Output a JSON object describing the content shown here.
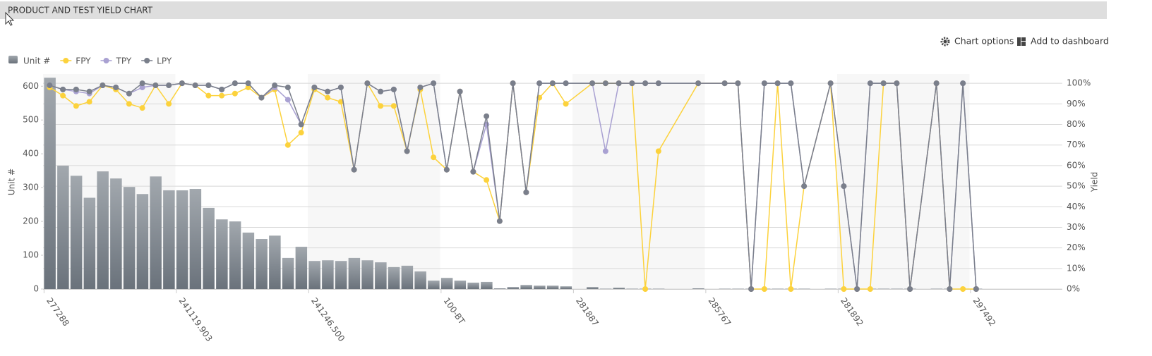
{
  "header": {
    "title": "PRODUCT AND TEST YIELD CHART"
  },
  "toolbar": {
    "chart_options": "Chart options",
    "add_to_dashboard": "Add to dashboard"
  },
  "chart_data": {
    "type": "bar_line",
    "connect_nulls": true,
    "y_label": "Unit #",
    "y2_label": "Yield",
    "categories": [
      "277288",
      null,
      null,
      null,
      null,
      null,
      null,
      null,
      null,
      null,
      "241119.903",
      null,
      null,
      null,
      null,
      null,
      null,
      null,
      null,
      null,
      "241246.500",
      null,
      null,
      null,
      null,
      null,
      null,
      null,
      null,
      null,
      "100-BT",
      null,
      null,
      null,
      null,
      null,
      null,
      null,
      null,
      null,
      "281887",
      null,
      null,
      null,
      null,
      null,
      null,
      null,
      null,
      null,
      "285767",
      null,
      null,
      null,
      null,
      null,
      null,
      null,
      null,
      null,
      "281892",
      null,
      null,
      null,
      null,
      null,
      null,
      null,
      null,
      null,
      "297492"
    ],
    "ylim": [
      0,
      636
    ],
    "yticks": [
      0,
      100,
      200,
      300,
      400,
      500,
      600
    ],
    "y2lim": [
      0,
      104.5
    ],
    "y2ticks": [
      {
        "value": 0,
        "label": "0%"
      },
      {
        "value": 10,
        "label": "10%"
      },
      {
        "value": 20,
        "label": "20%"
      },
      {
        "value": 30,
        "label": "30%"
      },
      {
        "value": 40,
        "label": "40%"
      },
      {
        "value": 50,
        "label": "50%"
      },
      {
        "value": 60,
        "label": "60%"
      },
      {
        "value": 70,
        "label": "70%"
      },
      {
        "value": 80,
        "label": "80%"
      },
      {
        "value": 90,
        "label": "90%"
      },
      {
        "value": 100,
        "label": "100%"
      }
    ],
    "grid": true,
    "legend": "top-left",
    "series": [
      {
        "name": "Unit #",
        "type": "bar",
        "color": "#858d96",
        "values": [
          625,
          365,
          335,
          270,
          348,
          327,
          302,
          281,
          333,
          292,
          292,
          296,
          240,
          206,
          200,
          167,
          148,
          158,
          92,
          125,
          83,
          85,
          83,
          92,
          85,
          79,
          65,
          69,
          52,
          25,
          33,
          25,
          19,
          21,
          2,
          6,
          12,
          10,
          10,
          8,
          null,
          6,
          1,
          4,
          1,
          1,
          1,
          null,
          null,
          2,
          null,
          1,
          1,
          1,
          1,
          1,
          1,
          1,
          null,
          1,
          1,
          1,
          1,
          1,
          1,
          1,
          null,
          1,
          1,
          1,
          1
        ]
      },
      {
        "name": "FPY",
        "type": "line",
        "axis": "y2",
        "color": "#fcd23c",
        "values": [
          98,
          94,
          89,
          91,
          99,
          97,
          90,
          88,
          99,
          90,
          100,
          99,
          94,
          94,
          95,
          98,
          93,
          97,
          70,
          76,
          97,
          93,
          91,
          58,
          100,
          89,
          89,
          67,
          97,
          64,
          58,
          96,
          57,
          53,
          33,
          100,
          47,
          93,
          100,
          90,
          null,
          100,
          100,
          100,
          100,
          0,
          67,
          null,
          null,
          100,
          null,
          100,
          100,
          0,
          0,
          100,
          0,
          50,
          null,
          100,
          0,
          0,
          0,
          100,
          100,
          0,
          null,
          100,
          0,
          0,
          0
        ]
      },
      {
        "name": "TPY",
        "type": "line",
        "axis": "y2",
        "color": "#a9a1d2",
        "values": [
          99,
          97,
          96,
          95,
          99,
          98,
          95,
          98,
          99,
          99,
          100,
          99,
          99,
          97,
          100,
          100,
          93,
          98,
          92,
          80,
          98,
          96,
          98,
          58,
          100,
          96,
          97,
          67,
          98,
          100,
          58,
          96,
          57,
          80,
          33,
          100,
          47,
          100,
          100,
          100,
          null,
          100,
          67,
          100,
          100,
          100,
          100,
          null,
          null,
          100,
          null,
          100,
          100,
          0,
          100,
          100,
          100,
          50,
          null,
          100,
          50,
          0,
          100,
          100,
          100,
          0,
          null,
          100,
          0,
          100,
          0
        ]
      },
      {
        "name": "LPY",
        "type": "line",
        "axis": "y2",
        "color": "#7a7f8b",
        "values": [
          99,
          97,
          97,
          96,
          99,
          98,
          95,
          100,
          99,
          99,
          100,
          99,
          99,
          97,
          100,
          100,
          93,
          99,
          98,
          80,
          98,
          96,
          98,
          58,
          100,
          96,
          97,
          67,
          98,
          100,
          58,
          96,
          57,
          84,
          33,
          100,
          47,
          100,
          100,
          100,
          null,
          100,
          100,
          100,
          100,
          100,
          100,
          null,
          null,
          100,
          null,
          100,
          100,
          0,
          100,
          100,
          100,
          50,
          null,
          100,
          50,
          0,
          100,
          100,
          100,
          0,
          null,
          100,
          0,
          100,
          0
        ]
      }
    ]
  }
}
